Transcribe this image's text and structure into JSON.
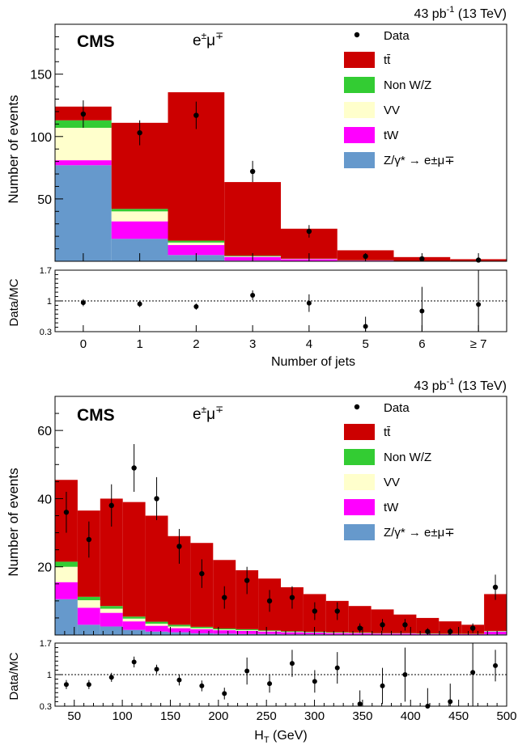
{
  "chart_data": [
    {
      "type": "bar",
      "stacked": true,
      "lumi": "43 pb",
      "lumi_sup": "-1",
      "energy": "(13 TeV)",
      "label": "CMS",
      "channel": "e",
      "channel_sup1": "±",
      "channel_mu": "μ",
      "channel_sup2": "∓",
      "ylabel": "Number of events",
      "xlabel": "Number of jets",
      "ratio_label": "Data/MC",
      "ylim": [
        0,
        190
      ],
      "yticks": [
        50,
        100,
        150
      ],
      "ratio_ylim": [
        0.3,
        1.7
      ],
      "ratio_ticks": [
        "0.3",
        "1",
        "1.7"
      ],
      "categories": [
        "0",
        "1",
        "2",
        "3",
        "4",
        "5",
        "6",
        "≥ 7"
      ],
      "series": [
        {
          "name": "Z/γ* → e±μ∓",
          "color": "#6699cc",
          "values": [
            77,
            18,
            5,
            0.5,
            0.2,
            0.1,
            0.05,
            0.02
          ]
        },
        {
          "name": "tW",
          "color": "#ff00ff",
          "values": [
            4,
            14,
            8,
            3,
            1.5,
            0.5,
            0.2,
            0.1
          ]
        },
        {
          "name": "VV",
          "color": "#ffffcc",
          "values": [
            26,
            8,
            2,
            0.5,
            0.2,
            0.1,
            0.05,
            0.02
          ]
        },
        {
          "name": "Non W/Z",
          "color": "#33cc33",
          "values": [
            6,
            2,
            1.5,
            0.5,
            0.2,
            0.1,
            0.05,
            0.02
          ]
        },
        {
          "name": "tt̄",
          "color": "#cc0000",
          "values": [
            11,
            69,
            119,
            59,
            24,
            8,
            3,
            1.5
          ]
        }
      ],
      "data": {
        "name": "Data",
        "values": [
          118,
          103,
          117,
          72,
          24,
          4,
          2,
          1
        ],
        "errors": [
          11,
          10,
          11,
          8.5,
          5,
          2,
          1.5,
          1
        ]
      },
      "ratio": {
        "values": [
          0.96,
          0.93,
          0.87,
          1.13,
          0.95,
          0.42,
          0.77,
          0.92
        ],
        "errors": [
          0.08,
          0.07,
          0.07,
          0.11,
          0.2,
          0.22,
          0.55,
          0.8
        ]
      }
    },
    {
      "type": "bar",
      "stacked": true,
      "lumi": "43 pb",
      "lumi_sup": "-1",
      "energy": "(13 TeV)",
      "label": "CMS",
      "channel": "e",
      "channel_sup1": "±",
      "channel_mu": "μ",
      "channel_sup2": "∓",
      "ylabel": "Number of events",
      "xlabel": "H",
      "xlabel_sub": "T",
      "xlabel_unit": " (GeV)",
      "ratio_label": "Data/MC",
      "xlim": [
        30,
        500
      ],
      "xticks": [
        50,
        100,
        150,
        200,
        250,
        300,
        350,
        400,
        450,
        500
      ],
      "ylim": [
        0,
        70
      ],
      "yticks": [
        20,
        40,
        60
      ],
      "ratio_ylim": [
        0.3,
        1.7
      ],
      "ratio_ticks": [
        "0.3",
        "1",
        "1.7"
      ],
      "bin_edges": [
        30,
        53.5,
        77,
        100.5,
        124,
        147.5,
        171,
        194.5,
        218,
        241.5,
        265,
        288.5,
        312,
        335.5,
        359,
        382.5,
        406,
        429.5,
        453,
        476.5,
        500
      ],
      "series": [
        {
          "name": "Z/γ* → e±μ∓",
          "color": "#6699cc",
          "values": [
            10.5,
            3,
            2.5,
            1.5,
            1,
            0.8,
            0.5,
            0.4,
            0.3,
            0.3,
            0.2,
            0.2,
            0.15,
            0.1,
            0.1,
            0.1,
            0.05,
            0.05,
            0.05,
            0.2
          ]
        },
        {
          "name": "tW",
          "color": "#ff00ff",
          "values": [
            5,
            5,
            4,
            2.5,
            1.7,
            1.2,
            1.2,
            1,
            0.9,
            0.7,
            0.6,
            0.5,
            0.4,
            0.4,
            0.3,
            0.3,
            0.25,
            0.2,
            0.2,
            0.8
          ]
        },
        {
          "name": "VV",
          "color": "#ffffcc",
          "values": [
            4.5,
            2.2,
            1.2,
            0.8,
            0.6,
            0.5,
            0.3,
            0.2,
            0.2,
            0.15,
            0.1,
            0.1,
            0.1,
            0.1,
            0.05,
            0.05,
            0.05,
            0.05,
            0.05,
            0.1
          ]
        },
        {
          "name": "Non W/Z",
          "color": "#33cc33",
          "values": [
            1.5,
            1,
            0.8,
            0.6,
            0.6,
            0.5,
            0.4,
            0.3,
            0.3,
            0.2,
            0.2,
            0.15,
            0.15,
            0.1,
            0.1,
            0.1,
            0.1,
            0.05,
            0.05,
            0.1
          ]
        },
        {
          "name": "tt̄",
          "color": "#cc0000",
          "values": [
            24,
            25.3,
            31.5,
            33.6,
            31.1,
            26,
            24.6,
            20.1,
            17.3,
            15.2,
            12.9,
            11.05,
            9.2,
            7.8,
            6.95,
            5.45,
            4.55,
            3.65,
            2.65,
            10.8
          ]
        }
      ],
      "data": {
        "name": "Data",
        "x": [
          41.75,
          65.25,
          88.75,
          112.25,
          135.75,
          159.25,
          182.75,
          206.25,
          229.75,
          253.25,
          276.75,
          300.25,
          323.75,
          347.25,
          370.75,
          394.25,
          417.75,
          441.25,
          464.75,
          488.25
        ],
        "values": [
          36,
          28,
          38,
          49,
          40,
          26,
          18,
          11,
          16,
          10,
          11,
          7,
          7,
          2,
          3,
          3,
          1,
          1,
          2,
          14
        ],
        "errors": [
          6,
          5.3,
          6.2,
          7,
          6.3,
          5.1,
          4.2,
          3.3,
          4,
          3.2,
          3.3,
          2.6,
          2.6,
          1.4,
          1.7,
          1.7,
          1,
          1,
          1.4,
          3.7
        ]
      },
      "ratio": {
        "values": [
          0.78,
          0.78,
          0.94,
          1.28,
          1.12,
          0.88,
          0.75,
          0.58,
          1.08,
          0.8,
          1.25,
          0.85,
          1.15,
          0.35,
          0.75,
          1.0,
          0.3,
          0.4,
          1.05,
          1.2
        ],
        "errors": [
          0.1,
          0.1,
          0.1,
          0.12,
          0.1,
          0.12,
          0.12,
          0.13,
          0.3,
          0.2,
          0.3,
          0.25,
          0.35,
          0.3,
          0.4,
          0.6,
          0.4,
          0.4,
          0.8,
          0.35
        ]
      }
    }
  ]
}
